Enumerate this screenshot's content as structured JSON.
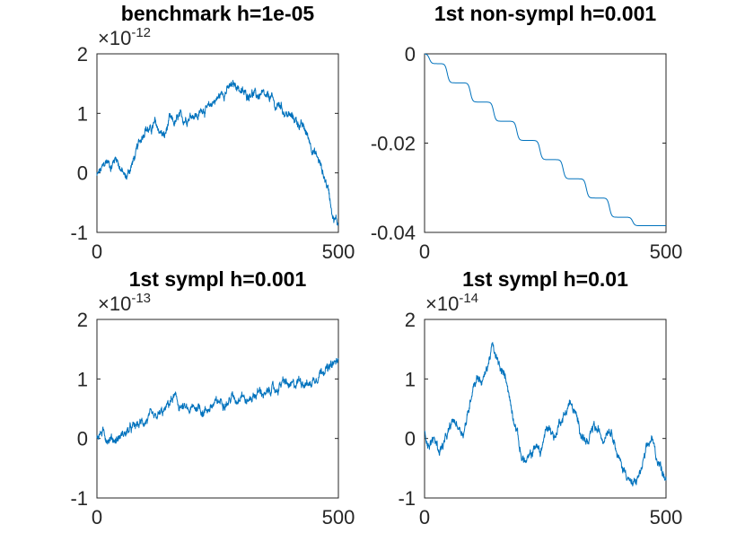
{
  "chart_data": [
    {
      "type": "line",
      "title": "benchmark h=1e-05",
      "xlabel": "",
      "ylabel": "",
      "xlim": [
        0,
        500
      ],
      "ylim": [
        -1,
        2
      ],
      "x_ticks": [
        0,
        500
      ],
      "y_ticks": [
        -1,
        0,
        1,
        2
      ],
      "x_tick_labels": [
        "0",
        "500"
      ],
      "y_tick_labels": [
        "-1",
        "0",
        "1",
        "2"
      ],
      "y_exponent_base": "×10",
      "y_exponent": "-12",
      "grid": false,
      "color": "#0072BD",
      "series": [
        {
          "x": [
            0,
            10,
            20,
            30,
            40,
            50,
            60,
            70,
            80,
            90,
            100,
            110,
            120,
            130,
            140,
            150,
            160,
            170,
            180,
            190,
            200,
            210,
            220,
            230,
            240,
            250,
            260,
            270,
            280,
            290,
            300,
            310,
            320,
            330,
            340,
            350,
            360,
            370,
            380,
            390,
            400,
            410,
            420,
            430,
            440,
            450,
            460,
            470,
            480,
            490,
            500
          ],
          "values": [
            -0.05,
            0.05,
            0.2,
            0.12,
            0.28,
            0.05,
            -0.1,
            0.1,
            0.3,
            0.55,
            0.78,
            0.7,
            0.82,
            0.7,
            0.6,
            0.88,
            0.82,
            0.92,
            0.9,
            0.95,
            1.0,
            0.95,
            1.1,
            1.05,
            1.2,
            1.25,
            1.35,
            1.4,
            1.45,
            1.48,
            1.35,
            1.3,
            1.38,
            1.28,
            1.32,
            1.22,
            1.28,
            1.1,
            1.15,
            1.0,
            0.95,
            0.9,
            0.82,
            0.72,
            0.55,
            0.35,
            0.2,
            -0.05,
            -0.3,
            -0.75,
            -0.85
          ]
        }
      ]
    },
    {
      "type": "line",
      "title": "1st non-sympl h=0.001",
      "xlabel": "",
      "ylabel": "",
      "xlim": [
        0,
        500
      ],
      "ylim": [
        -0.04,
        0
      ],
      "x_ticks": [
        0,
        500
      ],
      "y_ticks": [
        -0.04,
        -0.02,
        0
      ],
      "x_tick_labels": [
        "0",
        "500"
      ],
      "y_tick_labels": [
        "-0.04",
        "-0.02",
        "0"
      ],
      "grid": false,
      "color": "#0072BD",
      "series": [
        {
          "steps": [
            0,
            -0.0022,
            -0.0065,
            -0.0108,
            -0.0151,
            -0.0194,
            -0.0237,
            -0.028,
            -0.0323,
            -0.0366,
            -0.0385
          ],
          "step_x": [
            10,
            47,
            95,
            143,
            191,
            239,
            287,
            335,
            383,
            431,
            479
          ]
        }
      ]
    },
    {
      "type": "line",
      "title": "1st sympl h=0.001",
      "xlabel": "",
      "ylabel": "",
      "xlim": [
        0,
        500
      ],
      "ylim": [
        -1,
        2
      ],
      "x_ticks": [
        0,
        500
      ],
      "y_ticks": [
        -1,
        0,
        1,
        2
      ],
      "x_tick_labels": [
        "0",
        "500"
      ],
      "y_tick_labels": [
        "-1",
        "0",
        "1",
        "2"
      ],
      "y_exponent_base": "×10",
      "y_exponent": "-13",
      "grid": false,
      "color": "#0072BD",
      "series": [
        {
          "x": [
            0,
            10,
            20,
            30,
            40,
            50,
            60,
            70,
            80,
            90,
            100,
            110,
            120,
            130,
            140,
            150,
            160,
            170,
            180,
            190,
            200,
            210,
            220,
            230,
            240,
            250,
            260,
            270,
            280,
            290,
            300,
            310,
            320,
            330,
            340,
            350,
            360,
            370,
            380,
            390,
            400,
            410,
            420,
            430,
            440,
            450,
            460,
            470,
            480,
            490,
            500
          ],
          "values": [
            0.05,
            0.1,
            0.02,
            0.0,
            -0.02,
            0.05,
            0.1,
            0.15,
            0.2,
            0.25,
            0.3,
            0.35,
            0.3,
            0.4,
            0.45,
            0.6,
            0.7,
            0.55,
            0.5,
            0.45,
            0.5,
            0.55,
            0.45,
            0.5,
            0.55,
            0.6,
            0.65,
            0.6,
            0.7,
            0.65,
            0.8,
            0.6,
            0.7,
            0.75,
            0.8,
            0.7,
            0.85,
            0.8,
            0.9,
            0.95,
            0.85,
            0.9,
            1.0,
            0.95,
            0.9,
            1.0,
            1.1,
            1.2,
            1.15,
            1.25,
            1.3
          ]
        }
      ]
    },
    {
      "type": "line",
      "title": "1st sympl h=0.01",
      "xlabel": "",
      "ylabel": "",
      "xlim": [
        0,
        500
      ],
      "ylim": [
        -1,
        2
      ],
      "x_ticks": [
        0,
        500
      ],
      "y_ticks": [
        -1,
        0,
        1,
        2
      ],
      "x_tick_labels": [
        "0",
        "500"
      ],
      "y_tick_labels": [
        "-1",
        "0",
        "1",
        "2"
      ],
      "y_exponent_base": "×10",
      "y_exponent": "-14",
      "grid": false,
      "color": "#0072BD",
      "series": [
        {
          "x": [
            0,
            10,
            20,
            30,
            40,
            50,
            60,
            70,
            80,
            90,
            100,
            110,
            120,
            130,
            140,
            150,
            160,
            170,
            180,
            190,
            200,
            210,
            220,
            230,
            240,
            250,
            260,
            270,
            280,
            290,
            300,
            310,
            320,
            330,
            340,
            350,
            360,
            370,
            380,
            390,
            400,
            410,
            420,
            430,
            440,
            450,
            460,
            470,
            480,
            490,
            500
          ],
          "values": [
            0.1,
            -0.1,
            0.0,
            -0.2,
            -0.1,
            0.1,
            0.3,
            0.2,
            0.1,
            0.4,
            0.9,
            1.05,
            0.95,
            1.2,
            1.55,
            1.3,
            1.1,
            1.0,
            0.5,
            0.2,
            -0.3,
            -0.4,
            -0.3,
            -0.1,
            -0.25,
            0.1,
            0.2,
            0.0,
            0.3,
            0.4,
            0.6,
            0.45,
            0.2,
            0.0,
            -0.1,
            0.2,
            0.1,
            0.0,
            0.2,
            0.1,
            -0.3,
            -0.5,
            -0.6,
            -0.8,
            -0.7,
            -0.5,
            -0.2,
            0.0,
            -0.3,
            -0.5,
            -0.65
          ]
        }
      ]
    }
  ]
}
